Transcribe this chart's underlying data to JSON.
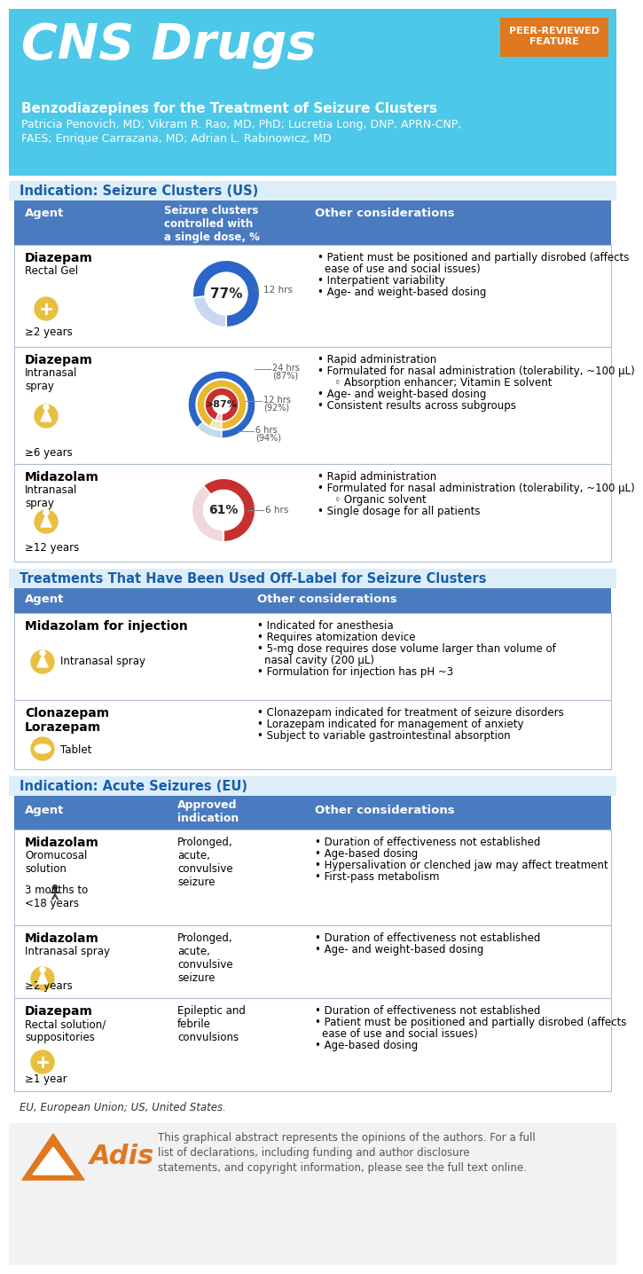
{
  "bg_header_color": "#4DC8E8",
  "title": "CNS Drugs",
  "subtitle": "Benzodiazepines for the Treatment of Seizure Clusters",
  "authors": "Patricia Penovich, MD; Vikram R. Rao, MD, PhD; Lucretia Long, DNP, APRN-CNP,\nFAES; Enrique Carrazana, MD; Adrian L. Rabinowicz, MD",
  "peer_reviewed_badge": "PEER-REVIEWED\nFEATURE",
  "peer_reviewed_color": "#E07820",
  "section1_title": "Indication: Seizure Clusters (US)",
  "section_title_color": "#1A5EA8",
  "section_title_bg": "#DDEEF8",
  "table_header_color": "#4A7BBE",
  "us_row1": {
    "name": "Diazepam",
    "subname": "Rectal Gel",
    "age": "≥2 years",
    "donut_pct": 77,
    "donut_color": "#2B65C8",
    "donut_bg": "#C8D8EE",
    "donut_label": "77%",
    "time_label": "12 hrs",
    "considerations": [
      "Patient must be positioned and partially disrobed (affects\nease of use and social issues)",
      "Interpatient variability",
      "Age- and weight-based dosing"
    ]
  },
  "us_row2": {
    "name": "Diazepam",
    "subname": "Intranasal\nspray",
    "age": "≥6 years",
    "donut_label": ">87%",
    "rings": [
      {
        "pct": 87,
        "color": "#2B65C8",
        "time": "24 hrs",
        "pct_label": "(87%)"
      },
      {
        "pct": 92,
        "color": "#E8B830",
        "time": "12 hrs",
        "pct_label": "(92%)"
      },
      {
        "pct": 94,
        "color": "#C83030",
        "time": "6 hrs",
        "pct_label": "(94%)"
      }
    ],
    "considerations": [
      "Rapid administration",
      "Formulated for nasal administration (tolerability, ~100 μL)\n   ◦ Absorption enhancer; Vitamin E solvent",
      "Age- and weight-based dosing",
      "Consistent results across subgroups"
    ]
  },
  "us_row3": {
    "name": "Midazolam",
    "subname": "Intranasal\nspray",
    "age": "≥12 years",
    "donut_pct": 61,
    "donut_color": "#C83030",
    "donut_bg": "#EED8D8",
    "donut_label": "61%",
    "time_label": "6 hrs",
    "considerations": [
      "Rapid administration",
      "Formulated for nasal administration (tolerability, ~100 μL)\n   ◦ Organic solvent",
      "Single dosage for all patients"
    ]
  },
  "section2_title": "Treatments That Have Been Used Off-Label for Seizure Clusters",
  "offlabel_row1": {
    "name": "Midazolam for injection",
    "subname": "Intranasal spray",
    "considerations": [
      "Indicated for anesthesia",
      "Requires atomization device",
      "5-mg dose requires dose volume larger than volume of\nnasal cavity (200 μL)",
      "Formulation for injection has pH ~3"
    ]
  },
  "offlabel_row2": {
    "name": "Clonazepam\nLorazepam",
    "subname": "Tablet",
    "considerations": [
      "Clonazepam indicated for treatment of seizure disorders",
      "Lorazepam indicated for management of anxiety",
      "Subject to variable gastrointestinal absorption"
    ]
  },
  "section3_title": "Indication: Acute Seizures (EU)",
  "eu_row1": {
    "name": "Midazolam",
    "subname": "Oromucosal\nsolution",
    "age": "3 months to\n<18 years",
    "approved": "Prolonged,\nacute,\nconvulsive\nseizure",
    "considerations": [
      "Duration of effectiveness not established",
      "Age-based dosing",
      "Hypersalivation or clenched jaw may affect treatment",
      "First-pass metabolism"
    ]
  },
  "eu_row2": {
    "name": "Midazolam",
    "subname": "Intranasal spray",
    "age": "≥2 years",
    "approved": "Prolonged,\nacute,\nconvulsive\nseizure",
    "considerations": [
      "Duration of effectiveness not established",
      "Age- and weight-based dosing"
    ]
  },
  "eu_row3": {
    "name": "Diazepam",
    "subname": "Rectal solution/\nsuppositories",
    "age": "≥1 year",
    "approved": "Epileptic and\nfebrile\nconvulsions",
    "considerations": [
      "Duration of effectiveness not established",
      "Patient must be positioned and partially disrobed (affects\nease of use and social issues)",
      "Age-based dosing"
    ]
  },
  "footer_text": "EU, European Union; US, United States.",
  "disclaimer": "This graphical abstract represents the opinions of the authors. For a full\nlist of declarations, including funding and author disclosure\nstatements, and copyright information, please see the full text online.",
  "icon_color": "#E8C040",
  "adis_color": "#E07820",
  "row_border_color": "#B0BED0",
  "table_border_color": "#8899BB"
}
